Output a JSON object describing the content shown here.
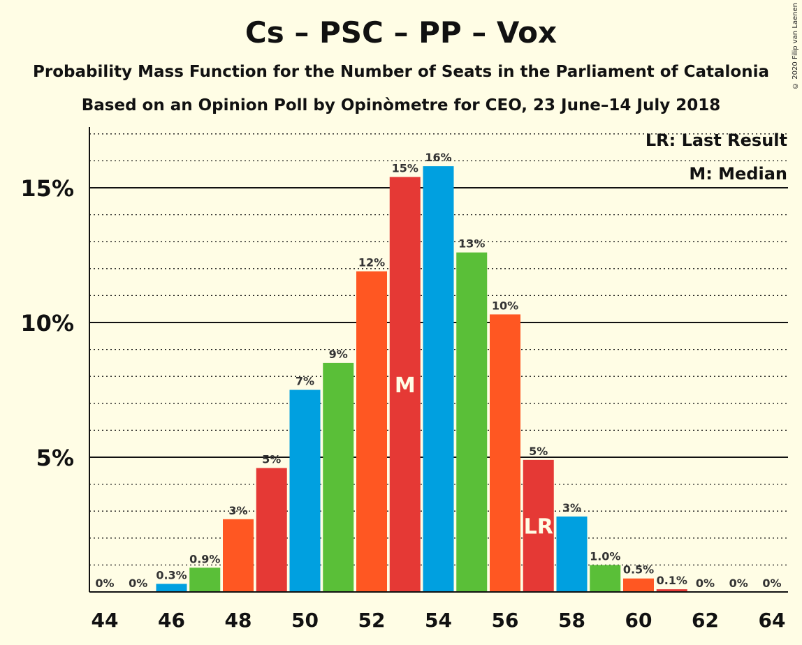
{
  "title": "Cs – PSC – PP – Vox",
  "subtitle": "Probability Mass Function for the Number of Seats in the Parliament of Catalonia",
  "subtitle2": "Based on an Opinion Poll by Opinòmetre for CEO, 23 June–14 July 2018",
  "copyright": "© 2020 Filip van Laenen",
  "legend": {
    "last_result": "LR: Last Result",
    "median": "M: Median"
  },
  "colors": {
    "background": "#fffde5",
    "blue": "#00a0e0",
    "green": "#5abf38",
    "orange": "#ff5722",
    "red": "#e53935"
  },
  "chart_data": {
    "type": "bar",
    "x": [
      44,
      45,
      46,
      47,
      48,
      49,
      50,
      51,
      52,
      53,
      54,
      55,
      56,
      57,
      58,
      59,
      60,
      61,
      62,
      63,
      64
    ],
    "values": [
      0,
      0,
      0.3,
      0.9,
      2.7,
      4.6,
      7.5,
      8.5,
      11.9,
      15.4,
      15.8,
      12.6,
      10.3,
      4.9,
      2.8,
      1.0,
      0.5,
      0.1,
      0,
      0,
      0
    ],
    "labels": [
      "0%",
      "0%",
      "0.3%",
      "0.9%",
      "3%",
      "5%",
      "7%",
      "9%",
      "12%",
      "15%",
      "16%",
      "13%",
      "10%",
      "5%",
      "3%",
      "1.0%",
      "0.5%",
      "0.1%",
      "0%",
      "0%",
      "0%"
    ],
    "bar_colors": [
      "blue",
      "green",
      "blue",
      "green",
      "orange",
      "red",
      "blue",
      "green",
      "orange",
      "red",
      "blue",
      "green",
      "orange",
      "red",
      "blue",
      "green",
      "orange",
      "red",
      "blue",
      "green",
      "orange"
    ],
    "x_ticks": [
      "44",
      "46",
      "48",
      "50",
      "52",
      "54",
      "56",
      "58",
      "60",
      "62",
      "64"
    ],
    "y_ticks": [
      {
        "value": 5,
        "label": "5%"
      },
      {
        "value": 10,
        "label": "10%"
      },
      {
        "value": 15,
        "label": "15%"
      }
    ],
    "ylim": [
      0,
      17.2
    ],
    "median": {
      "x": 53,
      "label": "M"
    },
    "last_result": {
      "x": 57,
      "label": "LR"
    },
    "xlabel": "",
    "ylabel": ""
  }
}
